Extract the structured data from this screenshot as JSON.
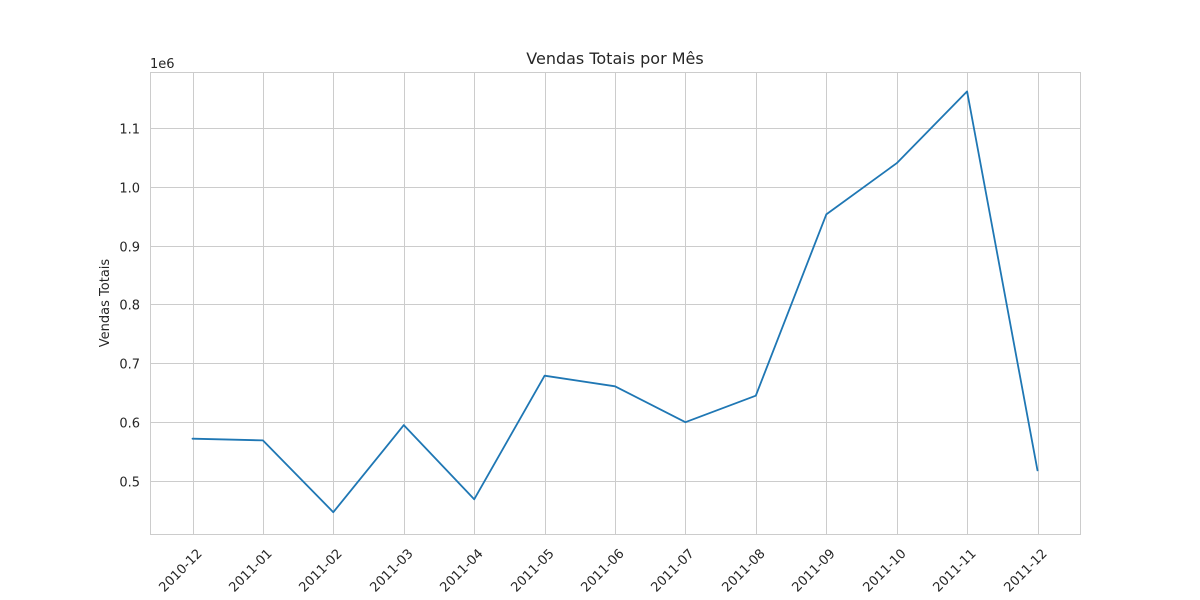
{
  "chart_data": {
    "type": "line",
    "title": "Vendas Totais por Mês",
    "xlabel": "",
    "ylabel": "Vendas Totais",
    "y_offset_label": "1e6",
    "categories": [
      "2010-12",
      "2011-01",
      "2011-02",
      "2011-03",
      "2011-04",
      "2011-05",
      "2011-06",
      "2011-07",
      "2011-08",
      "2011-09",
      "2011-10",
      "2011-11",
      "2011-12"
    ],
    "series": [
      {
        "color": "#1f77b4",
        "values": [
          572000,
          569000,
          447000,
          595000,
          469000,
          679000,
          661000,
          600000,
          645000,
          953000,
          1040000,
          1162000,
          518000
        ]
      }
    ],
    "ylim": [
      0.41,
      1.195
    ],
    "y_ticks": [
      "0.5",
      "0.6",
      "0.7",
      "0.8",
      "0.9",
      "1.0",
      "1.1"
    ],
    "grid": true
  }
}
